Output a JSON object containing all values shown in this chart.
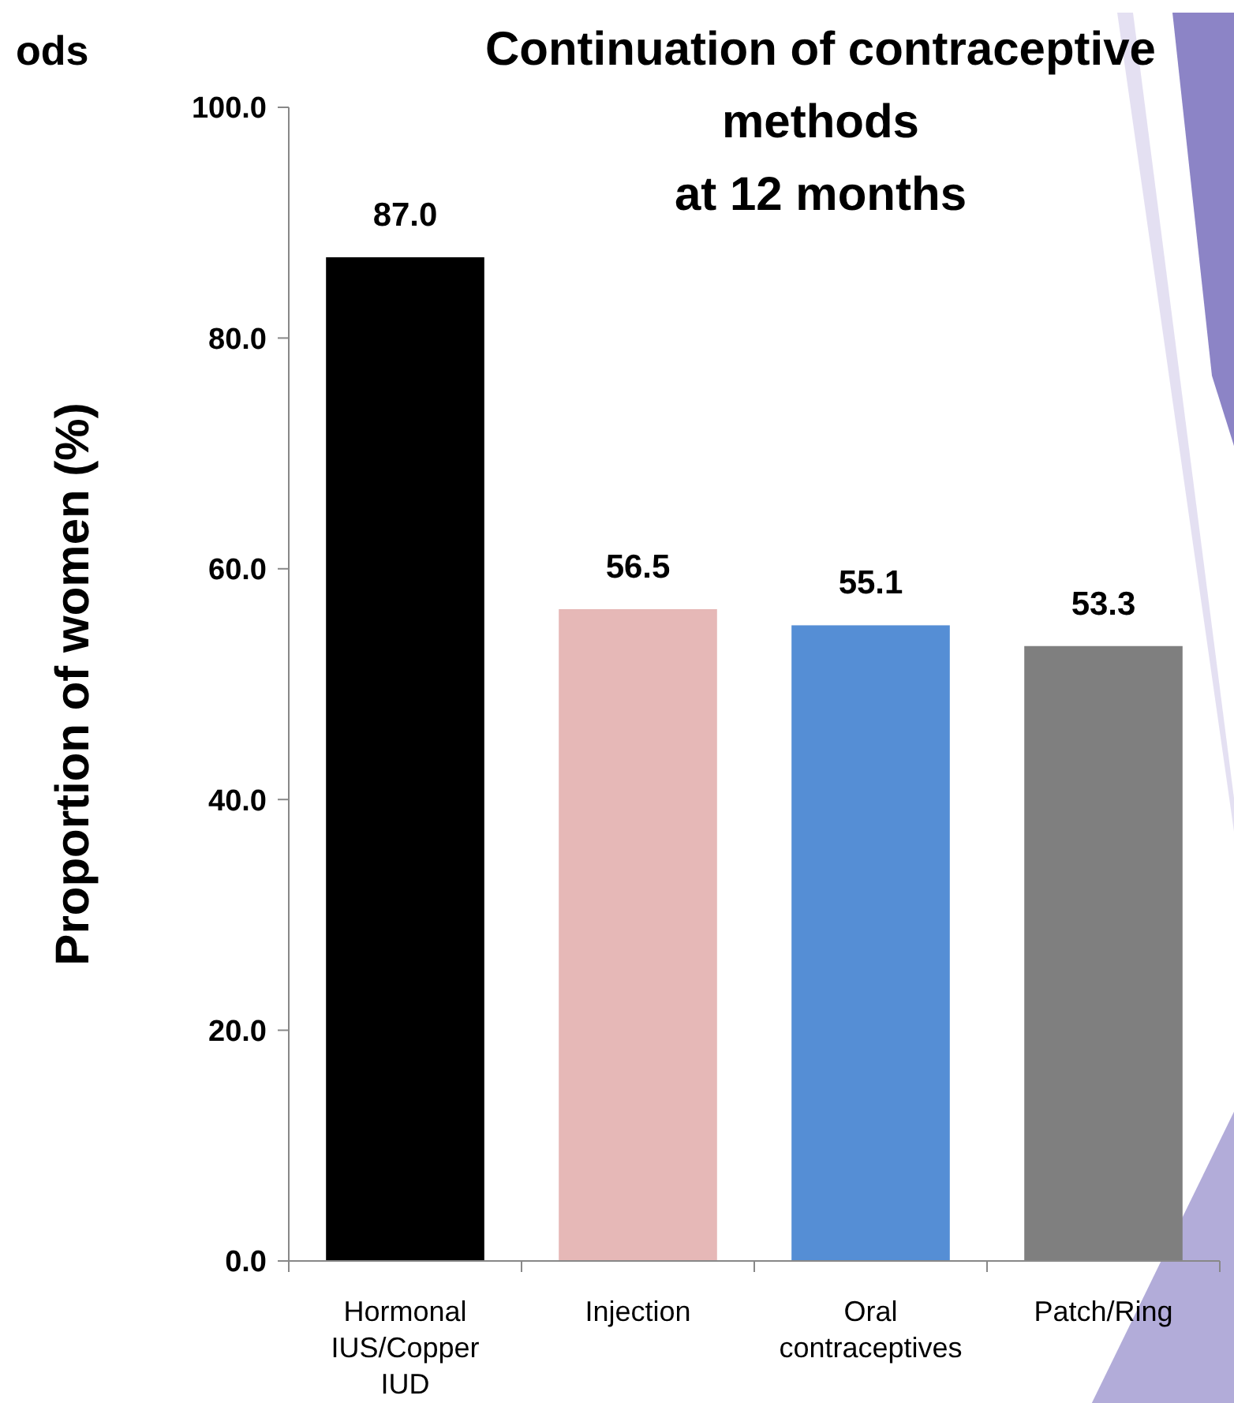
{
  "chart_data": {
    "type": "bar",
    "title": "Continuation of contraceptive\nmethods\nat 12 months",
    "ylabel": "Proportion of women (%)",
    "categories": [
      "Hormonal\nIUS/Copper\nIUD",
      "Injection",
      "Oral\ncontraceptives",
      "Patch/Ring"
    ],
    "values": [
      87.0,
      56.5,
      55.1,
      53.3
    ],
    "colors": [
      "#000000",
      "#e6b8b7",
      "#558ed5",
      "#7f7f7f"
    ],
    "ylim": [
      0,
      100
    ],
    "yticks": [
      {
        "value": 0,
        "label": "0.0"
      },
      {
        "value": 20,
        "label": "20.0"
      },
      {
        "value": 40,
        "label": "40.0"
      },
      {
        "value": 60,
        "label": "60.0"
      },
      {
        "value": 80,
        "label": "80.0"
      },
      {
        "value": 100,
        "label": "100.0"
      }
    ],
    "value_labels": [
      "87.0",
      "56.5",
      "55.1",
      "53.3"
    ],
    "grid": false,
    "annotations": [
      "ods"
    ]
  }
}
